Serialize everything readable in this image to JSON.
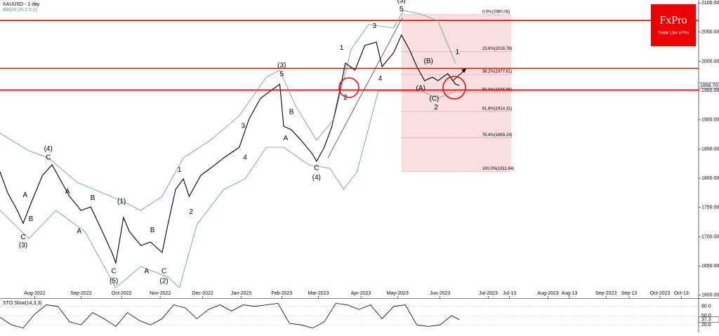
{
  "chart_data": {
    "type": "line",
    "title": "XAUUSD - 1 day",
    "indicator": "BB(20,20,2.0,0)",
    "xlim": [
      0,
      362
    ],
    "xticks": [
      {
        "value": 18,
        "label": "Aug-2022"
      },
      {
        "value": 42,
        "label": "Sep-2022"
      },
      {
        "value": 63,
        "label": "Oct-2022"
      },
      {
        "value": 83,
        "label": "Nov-2022"
      },
      {
        "value": 105,
        "label": "Dec-2022"
      },
      {
        "value": 125,
        "label": "Jan-2023"
      },
      {
        "value": 146,
        "label": "Feb-2023"
      },
      {
        "value": 165,
        "label": "Mar-2023"
      },
      {
        "value": 187,
        "label": "Apr-2023"
      },
      {
        "value": 206,
        "label": "May-2023"
      },
      {
        "value": 228,
        "label": "Jun-2023"
      },
      {
        "value": 253,
        "label": "Jul-2023"
      },
      {
        "value": 264,
        "label": "Jul-13"
      },
      {
        "value": 284,
        "label": "Aug-2023"
      },
      {
        "value": 295,
        "label": "Aug-13"
      },
      {
        "value": 314,
        "label": "Sep-2023"
      },
      {
        "value": 326,
        "label": "Sep-13"
      },
      {
        "value": 342,
        "label": "Oct-2023"
      },
      {
        "value": 353,
        "label": "Oct-13"
      }
    ],
    "ylim": [
      1595,
      2105
    ],
    "yticks": [
      {
        "value": 1600,
        "label": "1600.00"
      },
      {
        "value": 1650,
        "label": "1650.00"
      },
      {
        "value": 1700,
        "label": "1700.00"
      },
      {
        "value": 1750,
        "label": "1750.00"
      },
      {
        "value": 1800,
        "label": "1800.00"
      },
      {
        "value": 1850,
        "label": "1850.00"
      },
      {
        "value": 1900,
        "label": "1900.00"
      },
      {
        "value": 1950,
        "label": "1950.00"
      },
      {
        "value": 2000,
        "label": "2000.00"
      },
      {
        "value": 2050,
        "label": "2050.00"
      },
      {
        "value": 2100,
        "label": "2100.00"
      }
    ],
    "current": {
      "value": 1958.7,
      "label": "1958.70"
    },
    "series": [
      {
        "name": "XAUUSD",
        "color": "#000000",
        "x": [
          0,
          4,
          9,
          12,
          16,
          22,
          27,
          31,
          36,
          42,
          47,
          53,
          58,
          60,
          64,
          67,
          73,
          78,
          84,
          87,
          91,
          95,
          98,
          104,
          109,
          116,
          124,
          129,
          135,
          140,
          145,
          147,
          151,
          156,
          162,
          164,
          168,
          172,
          176,
          179,
          184,
          189,
          195,
          198,
          204,
          208,
          212,
          216,
          220,
          224,
          227,
          232,
          236,
          238
        ],
        "values": [
          1811,
          1775,
          1745,
          1723,
          1757,
          1805,
          1823,
          1799,
          1769,
          1745,
          1751,
          1709,
          1673,
          1655,
          1733,
          1709,
          1685,
          1691,
          1673,
          1721,
          1781,
          1799,
          1769,
          1805,
          1817,
          1835,
          1853,
          1901,
          1937,
          1949,
          1961,
          1889,
          1883,
          1865,
          1841,
          1829,
          1853,
          1889,
          1949,
          1997,
          1985,
          2027,
          2033,
          1991,
          2015,
          2045,
          2021,
          1991,
          1967,
          1973,
          1967,
          1979,
          1961,
          1959
        ]
      },
      {
        "name": "BB upper",
        "color": "#5f9a8e",
        "x": [
          0,
          15,
          25,
          40,
          62,
          73,
          84,
          95,
          109,
          124,
          138,
          145,
          153,
          164,
          173,
          182,
          191,
          204,
          209,
          218,
          227,
          236
        ],
        "values": [
          1877,
          1847,
          1835,
          1793,
          1763,
          1745,
          1769,
          1835,
          1865,
          1907,
          1973,
          1985,
          1925,
          1865,
          1901,
          2021,
          2063,
          2057,
          2087,
          2081,
          2069,
          1997
        ]
      },
      {
        "name": "BB lower",
        "color": "#5f9a8e",
        "x": [
          0,
          15,
          29,
          44,
          60,
          73,
          87,
          93,
          102,
          116,
          127,
          138,
          147,
          160,
          171,
          178,
          185,
          196,
          207,
          218,
          227,
          236
        ],
        "values": [
          1745,
          1697,
          1745,
          1709,
          1613,
          1649,
          1631,
          1613,
          1721,
          1781,
          1799,
          1853,
          1853,
          1823,
          1817,
          1781,
          1811,
          1949,
          1949,
          1949,
          1937,
          1949
        ]
      }
    ],
    "levels": [
      2070,
      1988,
      1951
    ],
    "fib": [
      {
        "value": 2080.08,
        "label": "0.0%(2080.08)"
      },
      {
        "value": 2016.78,
        "label": "23.6%(2016.78)"
      },
      {
        "value": 1977.61,
        "label": "38.2%(1977.61)"
      },
      {
        "value": 1946.96,
        "label": "50.0%(1946.96)"
      },
      {
        "value": 1914.31,
        "label": "61.8%(1914.31)"
      },
      {
        "value": 1869.24,
        "label": "76.4%(1869.24)"
      },
      {
        "value": 1811.84,
        "label": "100.0%(1811.84)"
      }
    ],
    "annotations": [
      {
        "text": "(4)",
        "x": 25,
        "y": 1850
      },
      {
        "text": "C",
        "x": 25,
        "y": 1835
      },
      {
        "text": "A",
        "x": 13,
        "y": 1771
      },
      {
        "text": "B",
        "x": 16,
        "y": 1730
      },
      {
        "text": "C",
        "x": 12,
        "y": 1699
      },
      {
        "text": "(3)",
        "x": 12,
        "y": 1685
      },
      {
        "text": "A",
        "x": 35,
        "y": 1777
      },
      {
        "text": "B",
        "x": 48,
        "y": 1766
      },
      {
        "text": "A",
        "x": 41,
        "y": 1709
      },
      {
        "text": "(1)",
        "x": 63,
        "y": 1760
      },
      {
        "text": "C",
        "x": 59,
        "y": 1641
      },
      {
        "text": "(5)",
        "x": 59,
        "y": 1624
      },
      {
        "text": "B",
        "x": 79,
        "y": 1711
      },
      {
        "text": "A",
        "x": 76,
        "y": 1641
      },
      {
        "text": "C",
        "x": 85,
        "y": 1641
      },
      {
        "text": "(2)",
        "x": 85,
        "y": 1624
      },
      {
        "text": "1",
        "x": 93,
        "y": 1814
      },
      {
        "text": "2",
        "x": 99,
        "y": 1742
      },
      {
        "text": "3",
        "x": 126,
        "y": 1889
      },
      {
        "text": "4",
        "x": 127,
        "y": 1835
      },
      {
        "text": "(3)",
        "x": 146,
        "y": 1993
      },
      {
        "text": "5",
        "x": 146,
        "y": 1978
      },
      {
        "text": "B",
        "x": 151,
        "y": 1913
      },
      {
        "text": "A",
        "x": 148,
        "y": 1868
      },
      {
        "text": "C",
        "x": 164,
        "y": 1817
      },
      {
        "text": "(4)",
        "x": 164,
        "y": 1801
      },
      {
        "text": "1",
        "x": 177,
        "y": 2023
      },
      {
        "text": "2",
        "x": 179,
        "y": 1938
      },
      {
        "text": "3",
        "x": 194,
        "y": 2060
      },
      {
        "text": "4",
        "x": 197,
        "y": 1970
      },
      {
        "text": "(3)",
        "x": 208,
        "y": 2104
      },
      {
        "text": "5",
        "x": 208,
        "y": 2089
      },
      {
        "text": "(B)",
        "x": 222,
        "y": 2000
      },
      {
        "text": "(A)",
        "x": 218,
        "y": 1954
      },
      {
        "text": "(C)",
        "x": 225,
        "y": 1936
      },
      {
        "text": "2",
        "x": 226,
        "y": 1921
      },
      {
        "text": "1",
        "x": 237,
        "y": 2016
      }
    ],
    "stochastic": {
      "title": "STO Slow(14,3,3)",
      "ylim": [
        0,
        100
      ],
      "yticks": [
        {
          "value": 80,
          "label": "80.0"
        },
        {
          "value": 50,
          "label": "50.0"
        },
        {
          "value": 20,
          "label": "20.0"
        }
      ],
      "current": {
        "value": 37.3,
        "label": "37.3"
      },
      "x": [
        0,
        6,
        12,
        18,
        24,
        30,
        36,
        42,
        48,
        54,
        60,
        66,
        72,
        78,
        84,
        90,
        96,
        102,
        108,
        114,
        120,
        126,
        132,
        138,
        144,
        150,
        156,
        162,
        168,
        174,
        180,
        186,
        192,
        198,
        204,
        210,
        216,
        222,
        228,
        234,
        238
      ],
      "values": [
        45,
        20,
        10,
        55,
        85,
        80,
        30,
        20,
        60,
        40,
        15,
        60,
        35,
        20,
        40,
        85,
        75,
        40,
        70,
        85,
        65,
        85,
        80,
        85,
        90,
        25,
        20,
        10,
        30,
        90,
        85,
        70,
        85,
        40,
        80,
        85,
        20,
        15,
        20,
        50,
        37.3
      ]
    },
    "logo": {
      "brand": "FxPro",
      "slogan": "Trade Like a Pro"
    }
  }
}
